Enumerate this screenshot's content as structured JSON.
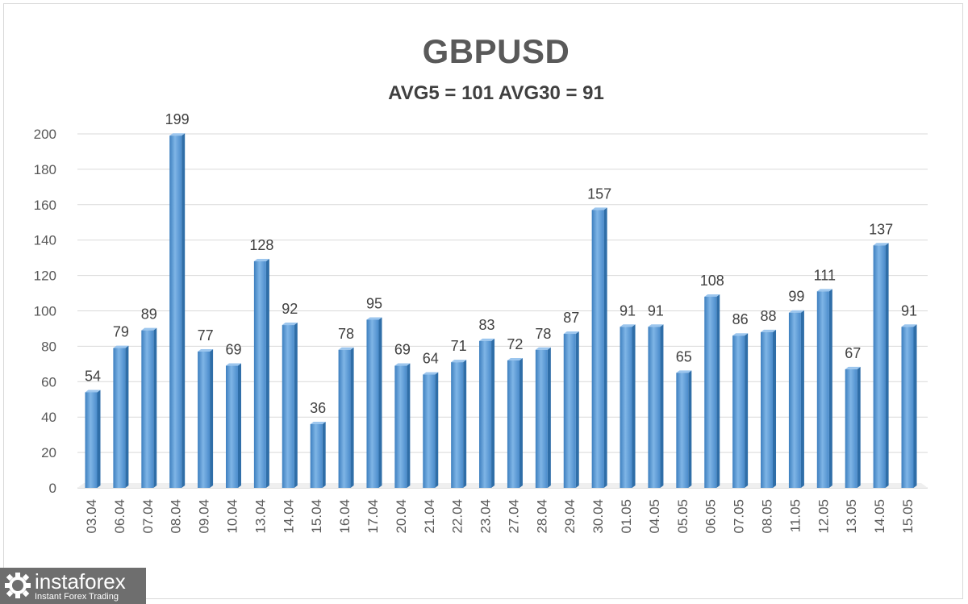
{
  "chart_data": {
    "type": "bar",
    "title": "GBPUSD",
    "subtitle": "AVG5 = 101 AVG30 = 91",
    "categories": [
      "03.04",
      "06.04",
      "07.04",
      "08.04",
      "09.04",
      "10.04",
      "13.04",
      "14.04",
      "15.04",
      "16.04",
      "17.04",
      "20.04",
      "21.04",
      "22.04",
      "23.04",
      "27.04",
      "28.04",
      "29.04",
      "30.04",
      "01.05",
      "04.05",
      "05.05",
      "06.05",
      "07.05",
      "08.05",
      "11.05",
      "12.05",
      "13.05",
      "14.05",
      "15.05"
    ],
    "values": [
      54,
      79,
      89,
      199,
      77,
      69,
      128,
      92,
      36,
      78,
      95,
      69,
      64,
      71,
      83,
      72,
      78,
      87,
      157,
      91,
      91,
      65,
      108,
      86,
      88,
      99,
      111,
      67,
      137,
      91
    ],
    "ylim": [
      0,
      200
    ],
    "yticks": [
      0,
      20,
      40,
      60,
      80,
      100,
      120,
      140,
      160,
      180,
      200
    ],
    "grid": true,
    "xlabel": "",
    "ylabel": "",
    "bar_color": "#5b9bd5"
  },
  "logo": {
    "name": "instaforex",
    "tagline": "Instant Forex Trading"
  }
}
